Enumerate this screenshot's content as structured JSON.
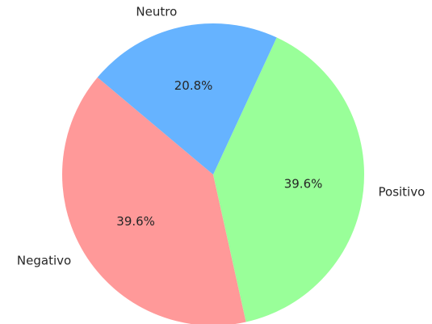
{
  "chart_data": {
    "type": "pie",
    "title": "",
    "slices": [
      {
        "label": "Negativo",
        "value": 39.6,
        "value_label": "39.6%",
        "color": "#ff9999"
      },
      {
        "label": "Positivo",
        "value": 39.6,
        "value_label": "39.6%",
        "color": "#99ff99"
      },
      {
        "label": "Neutro",
        "value": 20.8,
        "value_label": "20.8%",
        "color": "#66b3ff"
      }
    ],
    "start_angle_deg": 140,
    "direction": "counterclockwise",
    "legend": "none"
  }
}
